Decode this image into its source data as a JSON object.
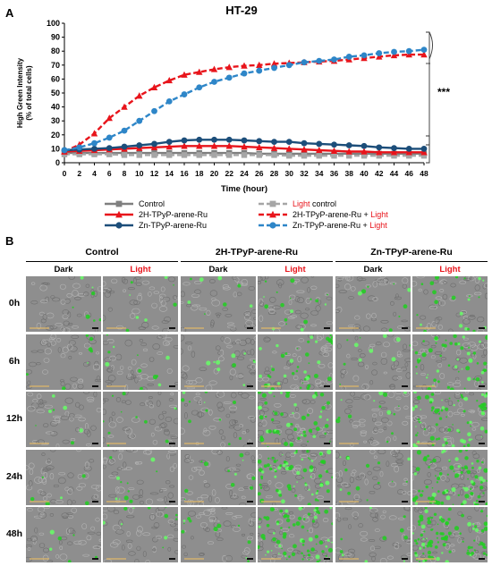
{
  "panel_a": {
    "letter": "A",
    "title": "HT-29",
    "xlabel": "Time (hour)",
    "ylabel_line1": "High Green Intensity",
    "ylabel_line2": "(% of total cells)",
    "significance": "***"
  },
  "legend": {
    "control": "Control",
    "light_control_red": "Light",
    "light_control_rest": " control",
    "h2": "2H-TPyP-arene-Ru",
    "h2_light": "2H-TPyP-arene-Ru + ",
    "light_word": "Light",
    "zn": "Zn-TPyP-arene-Ru",
    "zn_light": "Zn-TPyP-arene-Ru + "
  },
  "chart_data": {
    "type": "line",
    "title": "HT-29",
    "xlabel": "Time (hour)",
    "ylabel": "High Green Intensity (% of total cells)",
    "x": [
      0,
      2,
      4,
      6,
      8,
      10,
      12,
      14,
      16,
      18,
      20,
      22,
      24,
      26,
      28,
      30,
      32,
      34,
      36,
      38,
      40,
      42,
      44,
      46,
      48
    ],
    "xlim": [
      0,
      48
    ],
    "ylim": [
      0,
      100
    ],
    "yticks": [
      0,
      10,
      20,
      30,
      40,
      50,
      60,
      70,
      80,
      90,
      100
    ],
    "xticks": [
      0,
      2,
      4,
      6,
      8,
      10,
      12,
      14,
      16,
      18,
      20,
      22,
      24,
      26,
      28,
      30,
      32,
      34,
      36,
      38,
      40,
      42,
      44,
      46,
      48
    ],
    "grid": false,
    "legend_position": "bottom",
    "annotation": "***",
    "series": [
      {
        "name": "Control",
        "color": "#7f7f7f",
        "dash": false,
        "marker": "square",
        "values": [
          7,
          7,
          7,
          7,
          7,
          7,
          7,
          7,
          7,
          7,
          7,
          7,
          7,
          6.5,
          6.5,
          6.5,
          6.5,
          6.5,
          6.5,
          6.5,
          6.5,
          6.5,
          6.5,
          6.5,
          6.5
        ]
      },
      {
        "name": "Light control",
        "color": "#a6a6a6",
        "dash": true,
        "marker": "square",
        "values": [
          6,
          6,
          6,
          6,
          5.5,
          5.5,
          5.5,
          5.5,
          5.5,
          5.5,
          5.5,
          5.5,
          5.5,
          5.5,
          5.5,
          5,
          5,
          5,
          5,
          5,
          5,
          5,
          5,
          5,
          5
        ]
      },
      {
        "name": "2H-TPyP-arene-Ru",
        "color": "#e8141b",
        "dash": false,
        "marker": "triangle",
        "values": [
          8,
          8.5,
          9,
          9.5,
          10,
          10.5,
          11,
          11.5,
          12,
          12,
          12,
          12,
          11.5,
          11,
          10.5,
          10,
          9.5,
          9,
          8.5,
          8,
          8,
          7.5,
          7.5,
          7.5,
          7.5
        ]
      },
      {
        "name": "2H-TPyP-arene-Ru + Light",
        "color": "#e8141b",
        "dash": true,
        "marker": "triangle",
        "values": [
          8,
          13,
          21,
          32,
          40,
          48,
          54,
          59,
          63,
          65,
          67,
          68.5,
          69.5,
          70,
          71,
          71.5,
          72,
          72.5,
          73,
          74,
          75,
          76,
          77,
          77.5,
          77.5
        ]
      },
      {
        "name": "Zn-TPyP-arene-Ru",
        "color": "#1c4e7a",
        "dash": false,
        "marker": "circle",
        "values": [
          9,
          9.5,
          10,
          10.5,
          11.5,
          12.5,
          13.5,
          15,
          16,
          16.5,
          16.5,
          16.5,
          16,
          15.5,
          15,
          15,
          14,
          13.5,
          13,
          12.5,
          12,
          11,
          10.5,
          10,
          10
        ]
      },
      {
        "name": "Zn-TPyP-arene-Ru + Light",
        "color": "#2e86c8",
        "dash": true,
        "marker": "circle",
        "values": [
          9,
          11,
          14,
          18,
          23,
          30,
          37,
          44,
          49,
          54,
          58,
          61,
          64,
          66,
          68,
          70,
          72,
          73,
          74,
          76,
          77,
          78.5,
          79.5,
          80,
          81
        ]
      }
    ]
  },
  "panel_b": {
    "letter": "B",
    "groups": [
      "Control",
      "2H-TPyP-arene-Ru",
      "Zn-TPyP-arene-Ru"
    ],
    "dark_label": "Dark",
    "light_label": "Light",
    "light_color": "#e8141b",
    "rows": [
      "0h",
      "6h",
      "12h",
      "24h",
      "48h"
    ],
    "green_levels": [
      [
        0.05,
        0.06,
        0.06,
        0.12,
        0.06,
        0.16
      ],
      [
        0.05,
        0.08,
        0.07,
        0.3,
        0.08,
        0.4
      ],
      [
        0.05,
        0.08,
        0.08,
        0.45,
        0.1,
        0.55
      ],
      [
        0.04,
        0.08,
        0.08,
        0.55,
        0.1,
        0.65
      ],
      [
        0.04,
        0.08,
        0.08,
        0.6,
        0.08,
        0.7
      ]
    ]
  }
}
